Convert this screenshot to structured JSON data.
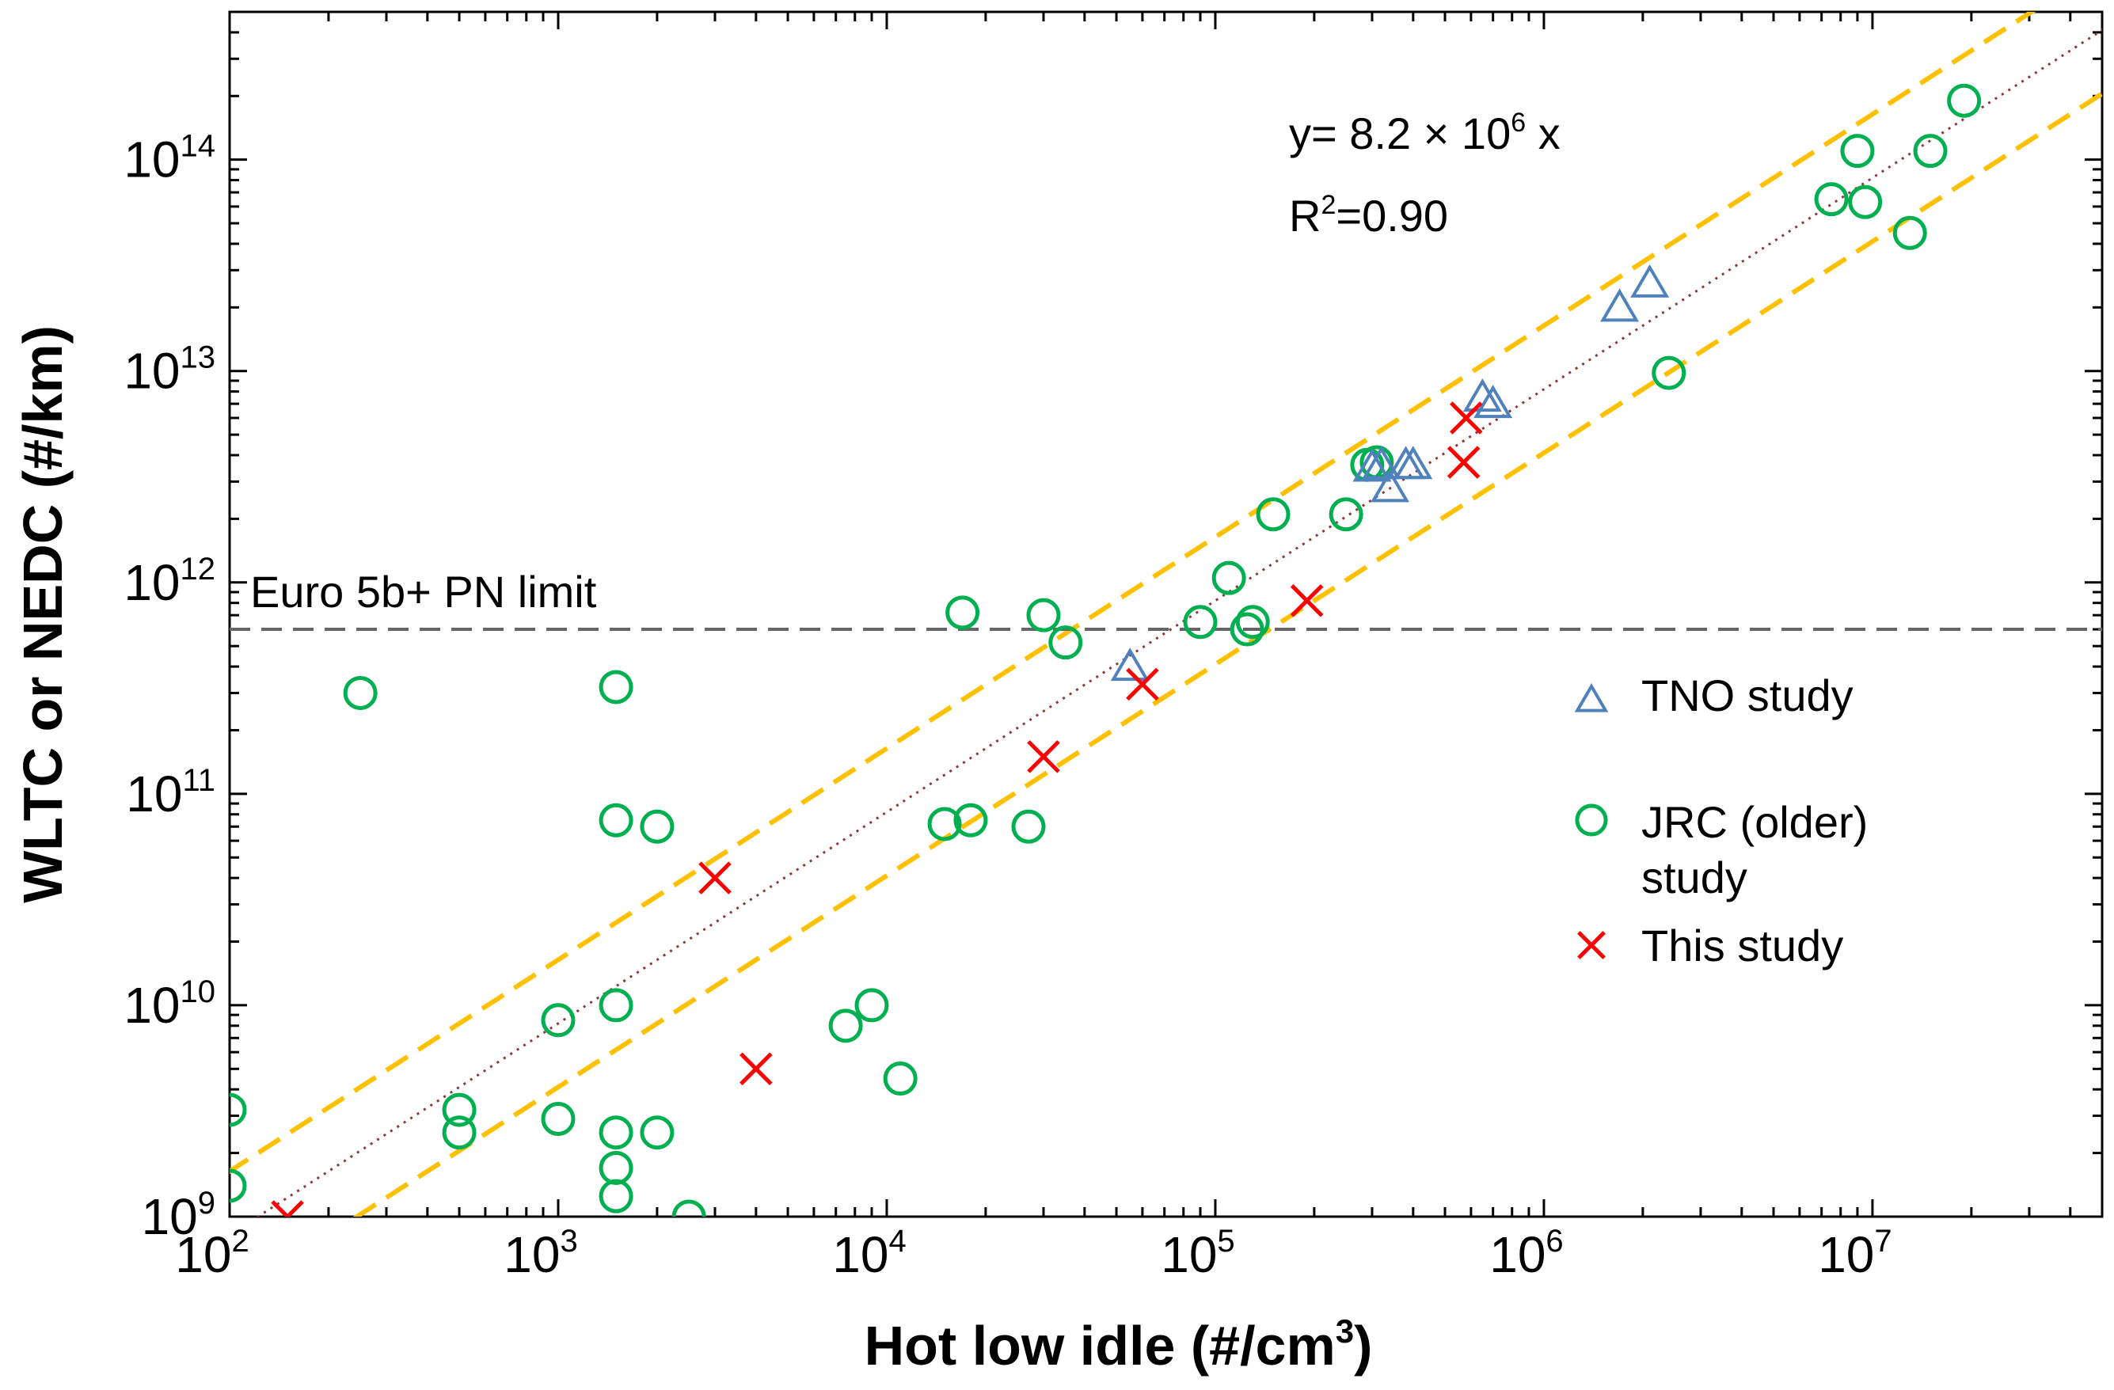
{
  "chart_data": {
    "type": "scatter",
    "xscale": "log",
    "yscale": "log",
    "xlabel": "Hot low idle (#/cm",
    "xlabel_sup": "3",
    "xlabel_end": ")",
    "ylabel": "WLTC or NEDC (#/km)",
    "xlim": [
      100,
      50000000
    ],
    "ylim": [
      1000000000,
      500000000000000
    ],
    "x_ticks": [
      {
        "base": "10",
        "exp": "2",
        "value": 100
      },
      {
        "base": "10",
        "exp": "3",
        "value": 1000
      },
      {
        "base": "10",
        "exp": "4",
        "value": 10000
      },
      {
        "base": "10",
        "exp": "5",
        "value": 100000
      },
      {
        "base": "10",
        "exp": "6",
        "value": 1000000
      },
      {
        "base": "10",
        "exp": "7",
        "value": 10000000
      }
    ],
    "y_ticks": [
      {
        "base": "10",
        "exp": "9",
        "value": 1000000000
      },
      {
        "base": "10",
        "exp": "10",
        "value": 10000000000
      },
      {
        "base": "10",
        "exp": "11",
        "value": 100000000000
      },
      {
        "base": "10",
        "exp": "12",
        "value": 1000000000000
      },
      {
        "base": "10",
        "exp": "13",
        "value": 10000000000000
      },
      {
        "base": "10",
        "exp": "14",
        "value": 100000000000000
      }
    ],
    "reference_line": {
      "label": "Euro 5b+ PN limit",
      "y": 600000000000,
      "color": "#666666"
    },
    "fit": {
      "equation_prefix": "y= 8.2 × 10",
      "equation_exp": "6",
      "equation_suffix": " x",
      "r2_prefix": "R",
      "r2_exp": "2",
      "r2_suffix": "=0.90",
      "slope": 8200000,
      "band_factor": 2,
      "fit_color": "#8b3a3a",
      "band_color": "#ffc000"
    },
    "series": [
      {
        "name": "TNO study",
        "marker": "triangle",
        "color": "#4f81bd",
        "points": [
          [
            55000,
            400000000000
          ],
          [
            300000,
            3500000000000
          ],
          [
            320000,
            3600000000000
          ],
          [
            340000,
            2800000000000
          ],
          [
            380000,
            3600000000000
          ],
          [
            400000,
            3600000000000
          ],
          [
            650000,
            7500000000000
          ],
          [
            700000,
            7000000000000
          ],
          [
            1700000,
            20000000000000
          ],
          [
            2100000,
            26000000000000
          ]
        ]
      },
      {
        "name_lines": [
          "JRC (older)",
          "study"
        ],
        "marker": "circle",
        "color": "#00b050",
        "points": [
          [
            100,
            3200000000
          ],
          [
            100,
            1400000000
          ],
          [
            250,
            300000000000
          ],
          [
            500,
            3200000000
          ],
          [
            500,
            2500000000
          ],
          [
            1000,
            8500000000
          ],
          [
            1000,
            2900000000
          ],
          [
            1500,
            10000000000
          ],
          [
            1500,
            2500000000
          ],
          [
            1500,
            1700000000
          ],
          [
            1500,
            1250000000
          ],
          [
            1500,
            320000000000
          ],
          [
            1500,
            75000000000
          ],
          [
            2000,
            70000000000
          ],
          [
            2000,
            2500000000
          ],
          [
            2500,
            1000000000
          ],
          [
            7500,
            8000000000
          ],
          [
            9000,
            10000000000
          ],
          [
            11000,
            4500000000
          ],
          [
            15000,
            72000000000
          ],
          [
            17000,
            720000000000
          ],
          [
            18000,
            75000000000
          ],
          [
            27000,
            70000000000
          ],
          [
            30000,
            700000000000
          ],
          [
            35000,
            520000000000
          ],
          [
            90000,
            650000000000
          ],
          [
            110000,
            1050000000000
          ],
          [
            125000,
            600000000000
          ],
          [
            130000,
            650000000000
          ],
          [
            150000,
            2100000000000
          ],
          [
            250000,
            2100000000000
          ],
          [
            290000,
            3600000000000
          ],
          [
            310000,
            3700000000000
          ],
          [
            2400000,
            9800000000000
          ],
          [
            7500000,
            65000000000000
          ],
          [
            9000000,
            110000000000000
          ],
          [
            9500000,
            63000000000000
          ],
          [
            13000000,
            45000000000000
          ],
          [
            15000000,
            110000000000000
          ],
          [
            19000000,
            190000000000000
          ]
        ]
      },
      {
        "name": "This study",
        "marker": "x",
        "color": "#ff0000",
        "points": [
          [
            150,
            1000000000
          ],
          [
            3000,
            40000000000
          ],
          [
            4000,
            5000000000
          ],
          [
            30000,
            150000000000
          ],
          [
            60000,
            330000000000
          ],
          [
            190000,
            820000000000
          ],
          [
            570000,
            3700000000000
          ],
          [
            580000,
            6000000000000
          ]
        ]
      }
    ]
  }
}
